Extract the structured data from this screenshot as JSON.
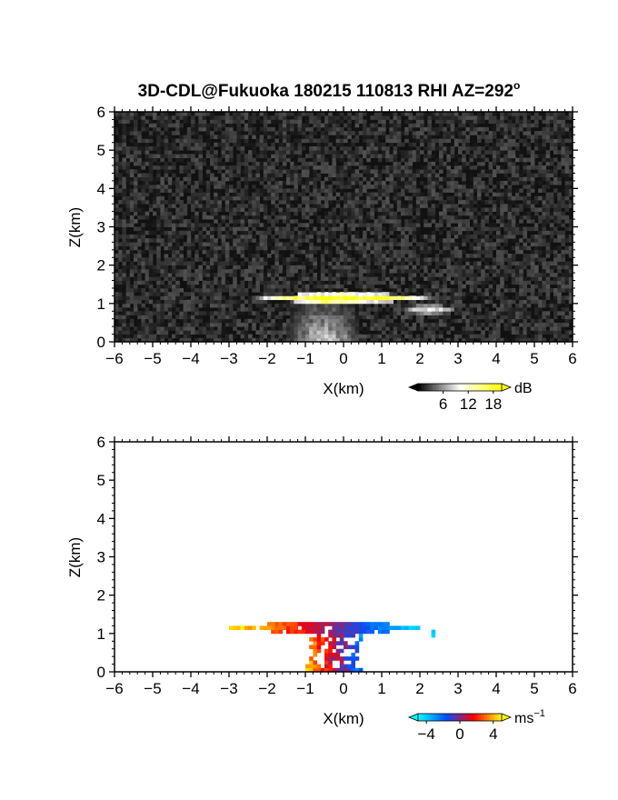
{
  "title": "3D-CDL@Fukuoka 180215 110813 RHI AZ=292",
  "title_superscript": "o",
  "chart_data": [
    {
      "type": "heatmap",
      "name": "reflectivity",
      "xlabel": "X(km)",
      "ylabel": "Z(km)",
      "xlim": [
        -6,
        6
      ],
      "ylim": [
        0,
        6
      ],
      "xticks": [
        "-6",
        "-5",
        "-4",
        "-3",
        "-2",
        "-1",
        "0",
        "1",
        "2",
        "3",
        "4",
        "5",
        "6"
      ],
      "yticks": [
        "0",
        "1",
        "2",
        "3",
        "4",
        "5",
        "6"
      ],
      "background": "#111111",
      "colorbar": {
        "unit": "dB",
        "ticks": [
          "6",
          "12",
          "18"
        ],
        "range": [
          0,
          20
        ],
        "colors": [
          "#000000",
          "#ffffff",
          "#ffff00"
        ]
      },
      "features": [
        {
          "kind": "layer",
          "x": [
            -2.5,
            2.5
          ],
          "z": 1.15,
          "peak_dB": 20
        },
        {
          "kind": "layer",
          "x": [
            -1.5,
            1.0
          ],
          "z": 1.12,
          "peak_dB": 22
        },
        {
          "kind": "layer",
          "x": [
            1.5,
            3.0
          ],
          "z": 0.85,
          "peak_dB": 10
        },
        {
          "kind": "plume",
          "x": [
            -1.5,
            0.5
          ],
          "z": [
            0.0,
            1.0
          ],
          "peak_dB": 9
        }
      ]
    },
    {
      "type": "heatmap",
      "name": "doppler velocity",
      "xlabel": "X(km)",
      "ylabel": "Z(km)",
      "xlim": [
        -6,
        6
      ],
      "ylim": [
        0,
        6
      ],
      "xticks": [
        "-6",
        "-5",
        "-4",
        "-3",
        "-2",
        "-1",
        "0",
        "1",
        "2",
        "3",
        "4",
        "5",
        "6"
      ],
      "yticks": [
        "0",
        "1",
        "2",
        "3",
        "4",
        "5",
        "6"
      ],
      "background": "#ffffff",
      "colorbar": {
        "unit": "ms",
        "unit_superscript": "−1",
        "ticks": [
          "−4",
          "0",
          "4"
        ],
        "range": [
          -5,
          5
        ],
        "colors": [
          "#00ffff",
          "#0050ff",
          "#ff0000",
          "#ffff00"
        ]
      },
      "features": [
        {
          "kind": "layer",
          "x": [
            -3.0,
            2.0
          ],
          "z": 1.15,
          "v_at_left": 5,
          "v_at_right": -4.5
        },
        {
          "kind": "patch",
          "x": [
            2.3,
            3.0
          ],
          "z": [
            0.8,
            1.1
          ],
          "v": -4.5
        },
        {
          "kind": "plume",
          "x": [
            -1.0,
            0.5
          ],
          "z": [
            0.0,
            1.05
          ],
          "v_at_left": 4,
          "v_at_right": -2.5
        }
      ]
    }
  ]
}
